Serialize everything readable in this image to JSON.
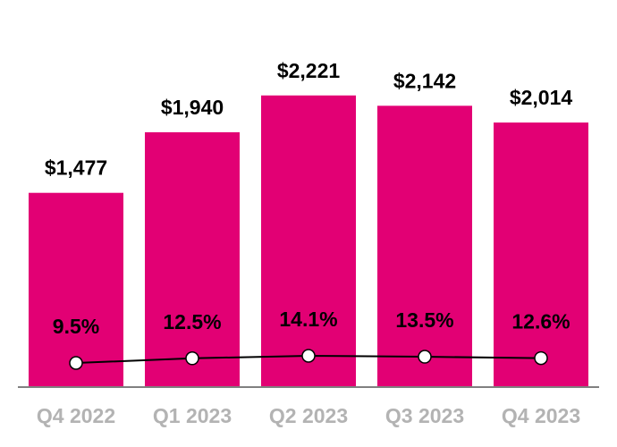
{
  "chart_data": {
    "type": "bar",
    "categories": [
      "Q4 2022",
      "Q1 2023",
      "Q2 2023",
      "Q3 2023",
      "Q4 2023"
    ],
    "series": [
      {
        "type": "bar",
        "values": [
          1477,
          1940,
          2221,
          2142,
          2014
        ],
        "labels": [
          "$1,477",
          "$1,940",
          "$2,221",
          "$2,142",
          "$2,014"
        ],
        "color": "#E20074"
      },
      {
        "type": "line",
        "axis": "secondary",
        "values": [
          9.5,
          12.5,
          14.1,
          13.5,
          12.6
        ],
        "labels": [
          "9.5%",
          "12.5%",
          "14.1%",
          "13.5%",
          "12.6%"
        ],
        "color": "#000000",
        "marker": "white-circle"
      }
    ],
    "ylim": [
      0,
      2950
    ],
    "grid": false,
    "legend": "none",
    "axis_color": "#808080",
    "tick_label_color": "#b3b3b3"
  }
}
